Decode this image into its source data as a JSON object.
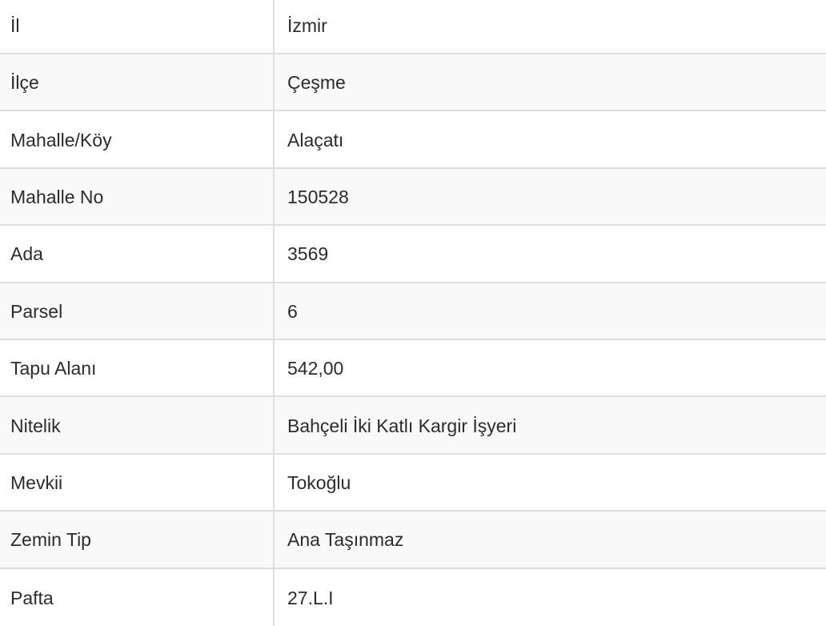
{
  "rows": [
    {
      "label": "İl",
      "value": "İzmir"
    },
    {
      "label": "İlçe",
      "value": "Çeşme"
    },
    {
      "label": "Mahalle/Köy",
      "value": "Alaçatı"
    },
    {
      "label": "Mahalle No",
      "value": "150528"
    },
    {
      "label": "Ada",
      "value": "3569"
    },
    {
      "label": "Parsel",
      "value": "6"
    },
    {
      "label": "Tapu Alanı",
      "value": "542,00"
    },
    {
      "label": "Nitelik",
      "value": "Bahçeli İki Katlı Kargir İşyeri"
    },
    {
      "label": "Mevkii",
      "value": "Tokoğlu"
    },
    {
      "label": "Zemin Tip",
      "value": "Ana Taşınmaz"
    },
    {
      "label": "Pafta",
      "value": "27.L.I"
    }
  ]
}
